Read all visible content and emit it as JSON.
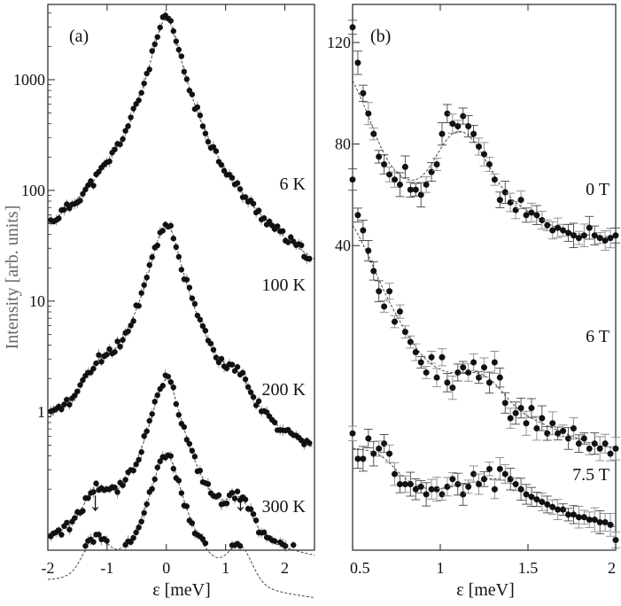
{
  "chart_data": [
    {
      "panel": "left",
      "type": "scatter",
      "panel_label": "(a)",
      "xlabel": "ε [meV]",
      "ylabel": "Intensity [arb. units]",
      "yscale": "log",
      "xlim": [
        -2,
        2.5
      ],
      "xticks": [
        -2,
        -1,
        0,
        1,
        2
      ],
      "xtick_labels": [
        "-2",
        "-1",
        "0",
        "1",
        "2"
      ],
      "yticks": [
        1,
        10,
        100,
        1000
      ],
      "ytick_labels": [
        "1",
        "10",
        "100",
        "1000"
      ],
      "ylim_log10": [
        -1.25,
        3.68
      ],
      "fit_line": true,
      "series": [
        {
          "name": "6 K",
          "label": "6 K",
          "offset_log10": 0,
          "peak_log10": 3.55,
          "bg_log10": 0.05,
          "hump_log10": 0.0
        },
        {
          "name": "100 K",
          "label": "100 K",
          "offset_log10": -0.95,
          "peak_log10": 2.65,
          "bg_log10": 0.2,
          "hump_log10": 0.15
        },
        {
          "name": "200 K",
          "label": "200 K",
          "offset_log10": -1.72,
          "peak_log10": 2.0,
          "bg_log10": 0.38,
          "hump_log10": 0.25
        },
        {
          "name": "300 K",
          "label": "300 K",
          "offset_log10": -2.38,
          "peak_log10": 1.98,
          "bg_log10": 0.72,
          "hump_log10": 0.3
        }
      ],
      "annotations": [
        {
          "type": "arrow",
          "x": -1.2,
          "label": "↓"
        },
        {
          "type": "arrow",
          "x": 1.25,
          "label": "↓"
        }
      ]
    },
    {
      "panel": "right",
      "type": "scatter",
      "panel_label": "(b)",
      "xlabel": "ε [meV]",
      "ylabel": "",
      "xlim": [
        0.5,
        2.0
      ],
      "ylim": [
        -80,
        135
      ],
      "xticks": [
        0.5,
        1,
        1.5,
        2
      ],
      "xtick_labels": [
        "0.5",
        "1",
        "1.5",
        "2"
      ],
      "yticks": [
        40,
        80,
        120
      ],
      "ytick_labels": [
        "40",
        "80",
        "120"
      ],
      "fit_line": true,
      "series": [
        {
          "name": "0 T",
          "label": "0 T",
          "x": [
            0.5,
            0.53,
            0.56,
            0.59,
            0.62,
            0.65,
            0.68,
            0.71,
            0.74,
            0.77,
            0.8,
            0.83,
            0.86,
            0.89,
            0.92,
            0.95,
            0.98,
            1.01,
            1.04,
            1.07,
            1.1,
            1.13,
            1.16,
            1.19,
            1.22,
            1.25,
            1.28,
            1.31,
            1.34,
            1.37,
            1.4,
            1.43,
            1.46,
            1.49,
            1.52,
            1.55,
            1.58,
            1.61,
            1.64,
            1.67,
            1.7,
            1.73,
            1.76,
            1.79,
            1.82,
            1.85,
            1.88,
            1.91,
            1.94,
            1.97,
            2.0
          ],
          "y": [
            126,
            112,
            100,
            92,
            84,
            75,
            72,
            68,
            66,
            64,
            71,
            62,
            62,
            60,
            64,
            69,
            72,
            84,
            92,
            88,
            87,
            91,
            87,
            84,
            79,
            76,
            72,
            66,
            58,
            61,
            57,
            54,
            58,
            52,
            53,
            52,
            50,
            48,
            46,
            47,
            46,
            45,
            44,
            43,
            44,
            47,
            44,
            43,
            42,
            43,
            44
          ]
        },
        {
          "name": "6 T",
          "label": "6 T",
          "x": [
            0.5,
            0.53,
            0.56,
            0.59,
            0.62,
            0.65,
            0.68,
            0.71,
            0.74,
            0.77,
            0.8,
            0.83,
            0.86,
            0.89,
            0.92,
            0.95,
            0.98,
            1.01,
            1.04,
            1.07,
            1.1,
            1.13,
            1.16,
            1.19,
            1.22,
            1.25,
            1.28,
            1.31,
            1.34,
            1.37,
            1.4,
            1.43,
            1.46,
            1.49,
            1.52,
            1.55,
            1.58,
            1.61,
            1.64,
            1.67,
            1.7,
            1.73,
            1.76,
            1.79,
            1.82,
            1.85,
            1.88,
            1.91,
            1.94,
            1.97,
            2.0
          ],
          "y": [
            66,
            52,
            46,
            38,
            30,
            22,
            16,
            22,
            10,
            14,
            6,
            2,
            -2,
            -6,
            -10,
            -4,
            -12,
            -4,
            -14,
            -16,
            -10,
            -8,
            -10,
            -6,
            -12,
            -8,
            -14,
            -6,
            -12,
            -22,
            -28,
            -26,
            -24,
            -30,
            -24,
            -32,
            -28,
            -34,
            -30,
            -34,
            -33,
            -36,
            -32,
            -38,
            -36,
            -40,
            -38,
            -40,
            -38,
            -42,
            -40
          ]
        },
        {
          "name": "7.5 T",
          "label": "7.5 T",
          "x": [
            0.5,
            0.53,
            0.56,
            0.59,
            0.62,
            0.65,
            0.68,
            0.71,
            0.74,
            0.77,
            0.8,
            0.83,
            0.86,
            0.89,
            0.92,
            0.95,
            0.98,
            1.01,
            1.04,
            1.07,
            1.1,
            1.13,
            1.16,
            1.19,
            1.22,
            1.25,
            1.28,
            1.31,
            1.34,
            1.37,
            1.4,
            1.43,
            1.46,
            1.49,
            1.52,
            1.55,
            1.58,
            1.61,
            1.64,
            1.67,
            1.7,
            1.73,
            1.76,
            1.79,
            1.82,
            1.85,
            1.88,
            1.91,
            1.94,
            1.97,
            2.0
          ],
          "y": [
            -34,
            -44,
            -44,
            -36,
            -42,
            -40,
            -38,
            -42,
            -50,
            -54,
            -54,
            -54,
            -56,
            -55,
            -58,
            -56,
            -56,
            -58,
            -55,
            -52,
            -54,
            -58,
            -55,
            -50,
            -54,
            -52,
            -48,
            -56,
            -48,
            -50,
            -52,
            -54,
            -56,
            -58,
            -59,
            -60,
            -61,
            -62,
            -63,
            -64,
            -64,
            -66,
            -66,
            -67,
            -67,
            -68,
            -68,
            -69,
            -69,
            -70,
            -76
          ]
        }
      ]
    }
  ]
}
